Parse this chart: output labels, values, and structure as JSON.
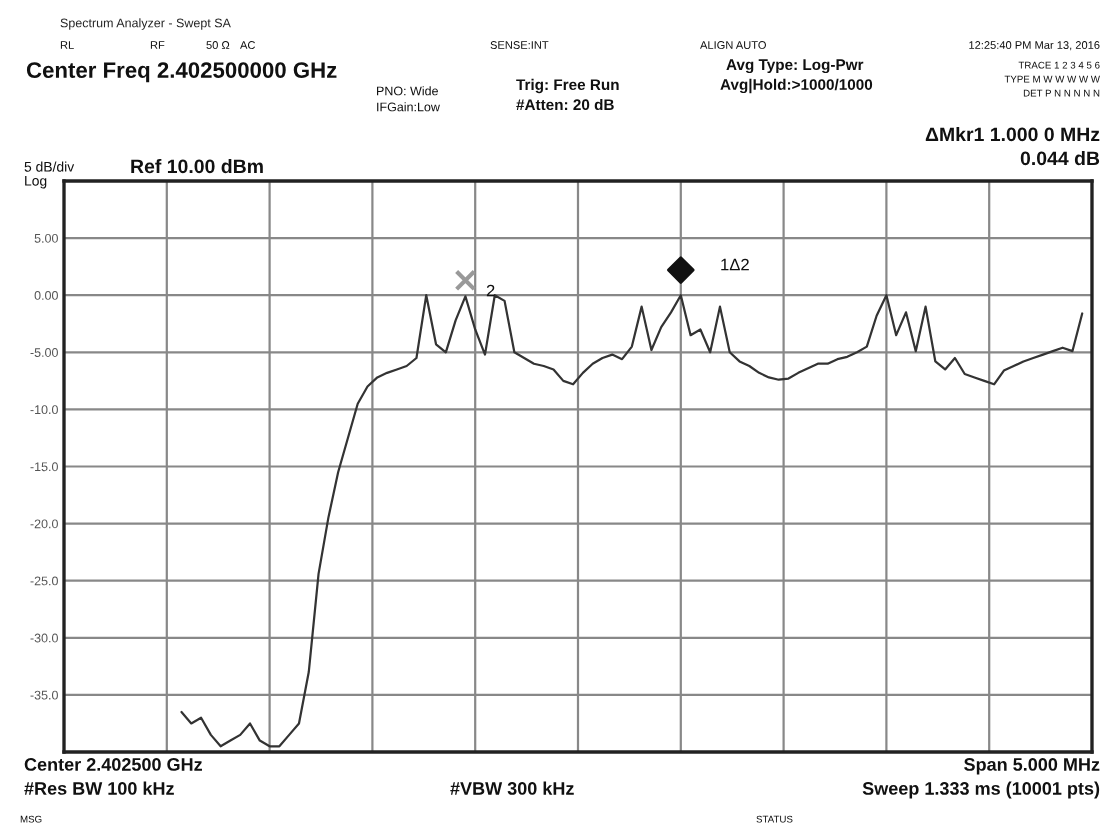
{
  "chart_data": {
    "type": "line",
    "title": "Spectrum Analyzer - Swept SA",
    "categories": [
      null,
      null,
      null,
      null,
      null,
      null,
      null,
      null,
      null,
      null,
      null,
      null,
      null,
      null,
      null,
      null,
      null,
      null,
      null,
      null,
      null,
      null,
      null,
      null,
      null,
      null,
      null,
      null,
      null,
      null,
      null,
      null,
      null,
      null,
      null,
      null,
      null,
      null,
      null,
      null,
      null,
      null,
      null,
      null,
      null,
      null,
      null,
      null,
      null,
      null,
      null,
      null,
      null,
      null,
      null,
      null,
      null,
      null,
      null,
      null,
      null,
      null,
      null,
      null,
      null,
      null,
      null,
      null,
      null,
      null,
      null,
      null,
      null,
      null,
      null,
      null,
      null,
      null,
      null,
      null,
      null,
      null,
      null,
      null,
      null,
      null,
      null,
      null,
      null,
      null,
      null,
      null,
      null,
      null,
      null,
      null,
      null,
      null,
      null,
      null,
      null,
      null,
      null,
      null,
      null,
      null
    ],
    "series": [
      {
        "color": "#333333",
        "values": [
          null,
          null,
          null,
          null,
          null,
          null,
          null,
          null,
          null,
          null,
          null,
          null,
          -36.5,
          -37.5,
          -37.0,
          -38.5,
          -39.5,
          -39.0,
          -38.5,
          -37.5,
          -39.0,
          -39.5,
          -39.5,
          -38.5,
          -37.5,
          -33.0,
          -24.4,
          -19.5,
          -15.5,
          -12.5,
          -9.5,
          -8.0,
          -7.2,
          -6.8,
          -6.5,
          -6.2,
          -5.5,
          0.0,
          -4.3,
          -5.0,
          -2.2,
          -0.1,
          -3.0,
          -5.2,
          0.0,
          -0.5,
          -5.0,
          -5.5,
          -6.0,
          -6.2,
          -6.5,
          -7.5,
          -7.8,
          -6.8,
          -6.0,
          -5.5,
          -5.2,
          -5.6,
          -4.5,
          -1.0,
          -4.8,
          -2.8,
          -1.5,
          0.0,
          -3.5,
          -3.0,
          -5.0,
          -1.0,
          -5.0,
          -5.8,
          -6.2,
          -6.8,
          -7.2,
          -7.4,
          -7.3,
          -6.8,
          -6.4,
          -6.0,
          -6.0,
          -5.6,
          -5.4,
          -5.0,
          -4.5,
          -1.8,
          0.0,
          -3.5,
          -1.5,
          -4.9,
          -1.0,
          -5.8,
          -6.5,
          -5.5,
          -6.9,
          -7.2,
          -7.5,
          -7.8,
          -6.6,
          -6.2,
          -5.8,
          -5.5,
          -5.2,
          -4.9,
          -4.6,
          -4.9,
          -1.6,
          null
        ]
      },
      {
        "type": "scatter",
        "color": "#111111",
        "marker": "diamond",
        "values": [
          null,
          null,
          null,
          null,
          null,
          null,
          null,
          null,
          null,
          null,
          null,
          null,
          null,
          null,
          null,
          null,
          null,
          null,
          null,
          null,
          null,
          null,
          null,
          null,
          null,
          null,
          null,
          null,
          null,
          null,
          null,
          null,
          null,
          null,
          null,
          null,
          null,
          null,
          null,
          null,
          null,
          null,
          null,
          null,
          null,
          null,
          null,
          null,
          null,
          null,
          null,
          null,
          null,
          null,
          null,
          null,
          null,
          null,
          null,
          null,
          null,
          null,
          null,
          2.2,
          null,
          null,
          null,
          null,
          null,
          null,
          null,
          null,
          null,
          null,
          null,
          null,
          null,
          null,
          null,
          null,
          null,
          null,
          null,
          null,
          null,
          null,
          null,
          null,
          null,
          null,
          null,
          null,
          null,
          null,
          null,
          null,
          null,
          null,
          null,
          null,
          null,
          null,
          null,
          null,
          null,
          null
        ]
      },
      {
        "type": "scatter",
        "color": "#999999",
        "marker": "cross",
        "values": [
          null,
          null,
          null,
          null,
          null,
          null,
          null,
          null,
          null,
          null,
          null,
          null,
          null,
          null,
          null,
          null,
          null,
          null,
          null,
          null,
          null,
          null,
          null,
          null,
          null,
          null,
          null,
          null,
          null,
          null,
          null,
          null,
          null,
          null,
          null,
          null,
          null,
          null,
          null,
          null,
          null,
          1.3,
          null,
          null,
          null,
          null,
          null,
          null,
          null,
          null,
          null,
          null,
          null,
          null,
          null,
          null,
          null,
          null,
          null,
          null,
          null,
          null,
          null,
          null,
          null,
          null,
          null,
          null,
          null,
          null,
          null,
          null,
          null,
          null,
          null,
          null,
          null,
          null,
          null,
          null,
          null,
          null,
          null,
          null,
          null,
          null,
          null,
          null,
          null,
          null,
          null,
          null,
          null,
          null,
          null,
          null,
          null,
          null,
          null,
          null,
          null,
          null,
          null,
          null,
          null,
          null
        ]
      }
    ],
    "ylim": [
      -40,
      10
    ],
    "yticks": [
      {
        "value": 10,
        "label": null
      },
      {
        "value": 5,
        "label": "5.00"
      },
      {
        "value": 0,
        "label": "0.00"
      },
      {
        "value": -5,
        "label": "-5.00"
      },
      {
        "value": -10,
        "label": "-10.0"
      },
      {
        "value": -15,
        "label": "-15.0"
      },
      {
        "value": -20,
        "label": "-20.0"
      },
      {
        "value": -25,
        "label": "-25.0"
      },
      {
        "value": -30,
        "label": "-30.0"
      },
      {
        "value": -35,
        "label": "-35.0"
      },
      {
        "value": -40,
        "label": null
      }
    ],
    "grid": true,
    "legend": false,
    "marker": "none",
    "line_style": "solid",
    "annotations": [
      "RL",
      "RF",
      "50 Ω",
      "AC",
      "SENSE:INT",
      "ALIGN AUTO",
      "12:25:40 PM Mar 13, 2016",
      "Center Freq 2.402500000 GHz",
      "PNO: Wide",
      "IFGain:Low",
      "Trig: Free Run",
      "#Atten: 20 dB",
      "Avg Type: Log-Pwr",
      "Avg|Hold:>1000/1000",
      "TRACE 1 2 3 4 5 6",
      "TYPE M W W W W W",
      "DET P N N N N N",
      "ΔMkr1 1.000 0 MHz",
      "0.044 dB",
      "5 dB/div",
      "Log",
      "Ref 10.00 dBm",
      "Center 2.402500 GHz",
      "#Res BW 100 kHz",
      "#VBW 300 kHz",
      "Span 5.000 MHz",
      "Sweep 1.333 ms (10001 pts)",
      "MSG",
      "STATUS",
      "1Δ2",
      "2"
    ]
  }
}
